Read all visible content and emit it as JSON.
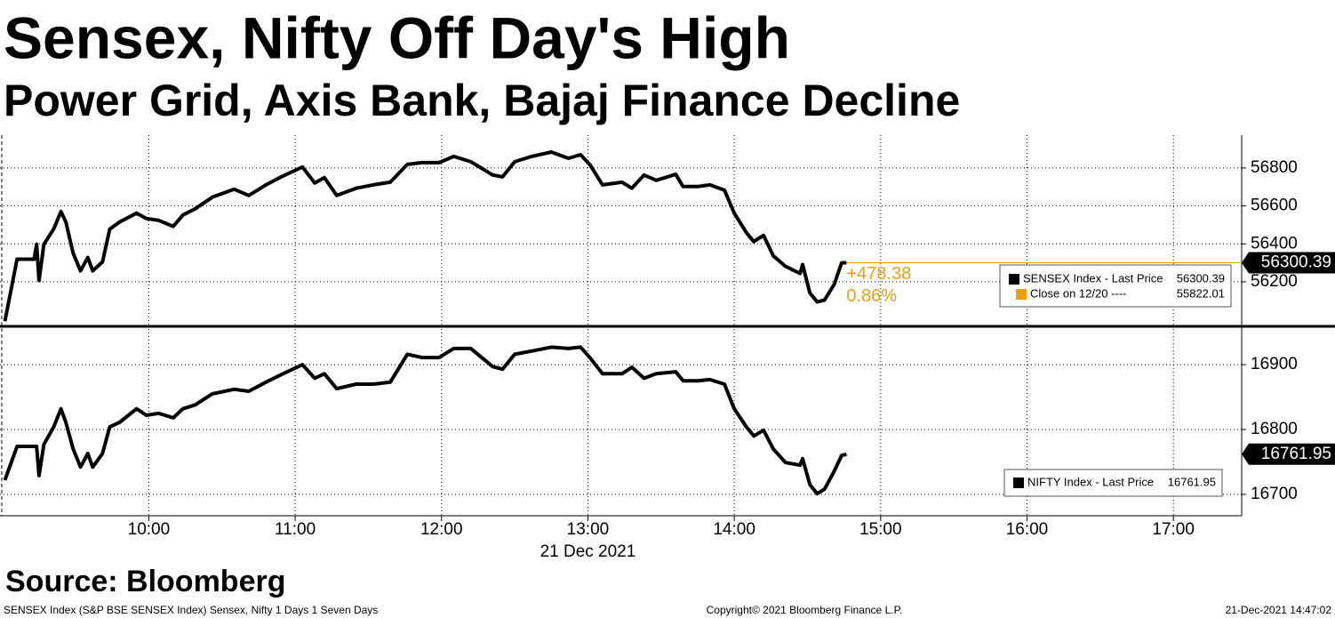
{
  "header": {
    "title": "Sensex, Nifty Off Day's High",
    "subtitle": "Power Grid, Axis Bank, Bajaj Finance Decline"
  },
  "chart_data": [
    {
      "type": "line",
      "x": [
        "09:01",
        "09:06",
        "09:13",
        "09:14",
        "09:15",
        "09:17",
        "09:21",
        "09:24",
        "09:26",
        "09:29",
        "09:32",
        "09:35",
        "09:37",
        "09:41",
        "09:44",
        "09:48",
        "09:55",
        "09:59",
        "10:04",
        "10:10",
        "10:14",
        "10:19",
        "10:26",
        "10:35",
        "10:41",
        "10:48",
        "10:55",
        "11:03",
        "11:08",
        "11:12",
        "11:17",
        "11:25",
        "11:32",
        "11:39",
        "11:46",
        "11:52",
        "11:59",
        "12:05",
        "12:12",
        "12:21",
        "12:25",
        "12:30",
        "12:37",
        "12:45",
        "12:52",
        "12:57",
        "13:01",
        "13:06",
        "13:14",
        "13:18",
        "13:23",
        "13:28",
        "13:36",
        "13:39",
        "13:45",
        "13:50",
        "13:56",
        "14:00",
        "14:05",
        "14:08",
        "14:12",
        "14:16",
        "14:21",
        "14:27",
        "14:28",
        "14:31",
        "14:34",
        "14:37",
        "14:41",
        "14:44",
        "14:46"
      ],
      "xlim": [
        "08:59",
        "17:28"
      ],
      "ylim": [
        55970,
        56973
      ],
      "yticks": [
        56200,
        56400,
        56600,
        56800
      ],
      "grid": true,
      "series": [
        {
          "name": "SENSEX Index - Last Price",
          "color": "#000000",
          "values": [
            55992,
            56319,
            56319,
            56398,
            56207,
            56398,
            56478,
            56571,
            56515,
            56351,
            56258,
            56328,
            56258,
            56305,
            56478,
            56515,
            56562,
            56534,
            56524,
            56492,
            56552,
            56585,
            56646,
            56688,
            56655,
            56711,
            56758,
            56805,
            56721,
            56749,
            56655,
            56693,
            56711,
            56725,
            56819,
            56828,
            56828,
            56861,
            56833,
            56763,
            56753,
            56833,
            56861,
            56884,
            56851,
            56870,
            56814,
            56711,
            56725,
            56693,
            56763,
            56735,
            56767,
            56702,
            56702,
            56711,
            56683,
            56562,
            56459,
            56412,
            56445,
            56337,
            56281,
            56244,
            56291,
            56141,
            56094,
            56104,
            56188,
            56300,
            56300.39
          ]
        }
      ],
      "reference": {
        "name": "Close on 12/20 ----",
        "value": 55822.01,
        "color": "#f39c12"
      },
      "change": {
        "value": 478.38,
        "label": "+478.38"
      },
      "change_pct": {
        "value": 0.86,
        "label": "0.86%"
      }
    },
    {
      "type": "line",
      "x": [
        "09:01",
        "09:06",
        "09:13",
        "09:14",
        "09:15",
        "09:17",
        "09:21",
        "09:24",
        "09:26",
        "09:29",
        "09:32",
        "09:35",
        "09:37",
        "09:41",
        "09:44",
        "09:48",
        "09:55",
        "09:59",
        "10:04",
        "10:10",
        "10:14",
        "10:19",
        "10:26",
        "10:35",
        "10:41",
        "10:48",
        "10:55",
        "11:03",
        "11:08",
        "11:12",
        "11:17",
        "11:25",
        "11:32",
        "11:39",
        "11:46",
        "11:52",
        "11:59",
        "12:05",
        "12:12",
        "12:21",
        "12:25",
        "12:30",
        "12:37",
        "12:45",
        "12:52",
        "12:57",
        "13:01",
        "13:06",
        "13:14",
        "13:18",
        "13:23",
        "13:28",
        "13:36",
        "13:39",
        "13:45",
        "13:50",
        "13:56",
        "14:00",
        "14:05",
        "14:08",
        "14:12",
        "14:16",
        "14:21",
        "14:27",
        "14:28",
        "14:31",
        "14:34",
        "14:37",
        "14:41",
        "14:44",
        "14:46"
      ],
      "xlim": [
        "08:59",
        "17:28"
      ],
      "xticks": [
        "10:00",
        "11:00",
        "12:00",
        "13:00",
        "14:00",
        "15:00",
        "16:00",
        "17:00"
      ],
      "xlabel": "21 Dec 2021",
      "ylim": [
        16667,
        16955
      ],
      "yticks": [
        16700,
        16800,
        16900
      ],
      "grid": true,
      "series": [
        {
          "name": "NIFTY Index - Last Price",
          "color": "#000000",
          "values": [
            16722,
            16774,
            16774,
            16774,
            16729,
            16777,
            16804,
            16832,
            16811,
            16770,
            16742,
            16763,
            16742,
            16763,
            16804,
            16811,
            16832,
            16822,
            16825,
            16818,
            16832,
            16838,
            16855,
            16862,
            16859,
            16873,
            16886,
            16900,
            16879,
            16886,
            16863,
            16870,
            16870,
            16873,
            16916,
            16911,
            16911,
            16925,
            16925,
            16897,
            16893,
            16916,
            16921,
            16927,
            16925,
            16927,
            16910,
            16886,
            16886,
            16896,
            16879,
            16886,
            16889,
            16875,
            16875,
            16877,
            16870,
            16832,
            16804,
            16790,
            16799,
            16770,
            16749,
            16745,
            16755,
            16715,
            16701,
            16708,
            16736,
            16760,
            16761.95
          ]
        }
      ]
    }
  ],
  "source": "Source: Bloomberg",
  "footer": {
    "left": "SENSEX Index (S&P BSE SENSEX Index) Sensex, Nifty 1 Days 1 Seven Days",
    "center": "Copyright© 2021 Bloomberg Finance L.P.",
    "right": "21-Dec-2021 14:47:02"
  }
}
